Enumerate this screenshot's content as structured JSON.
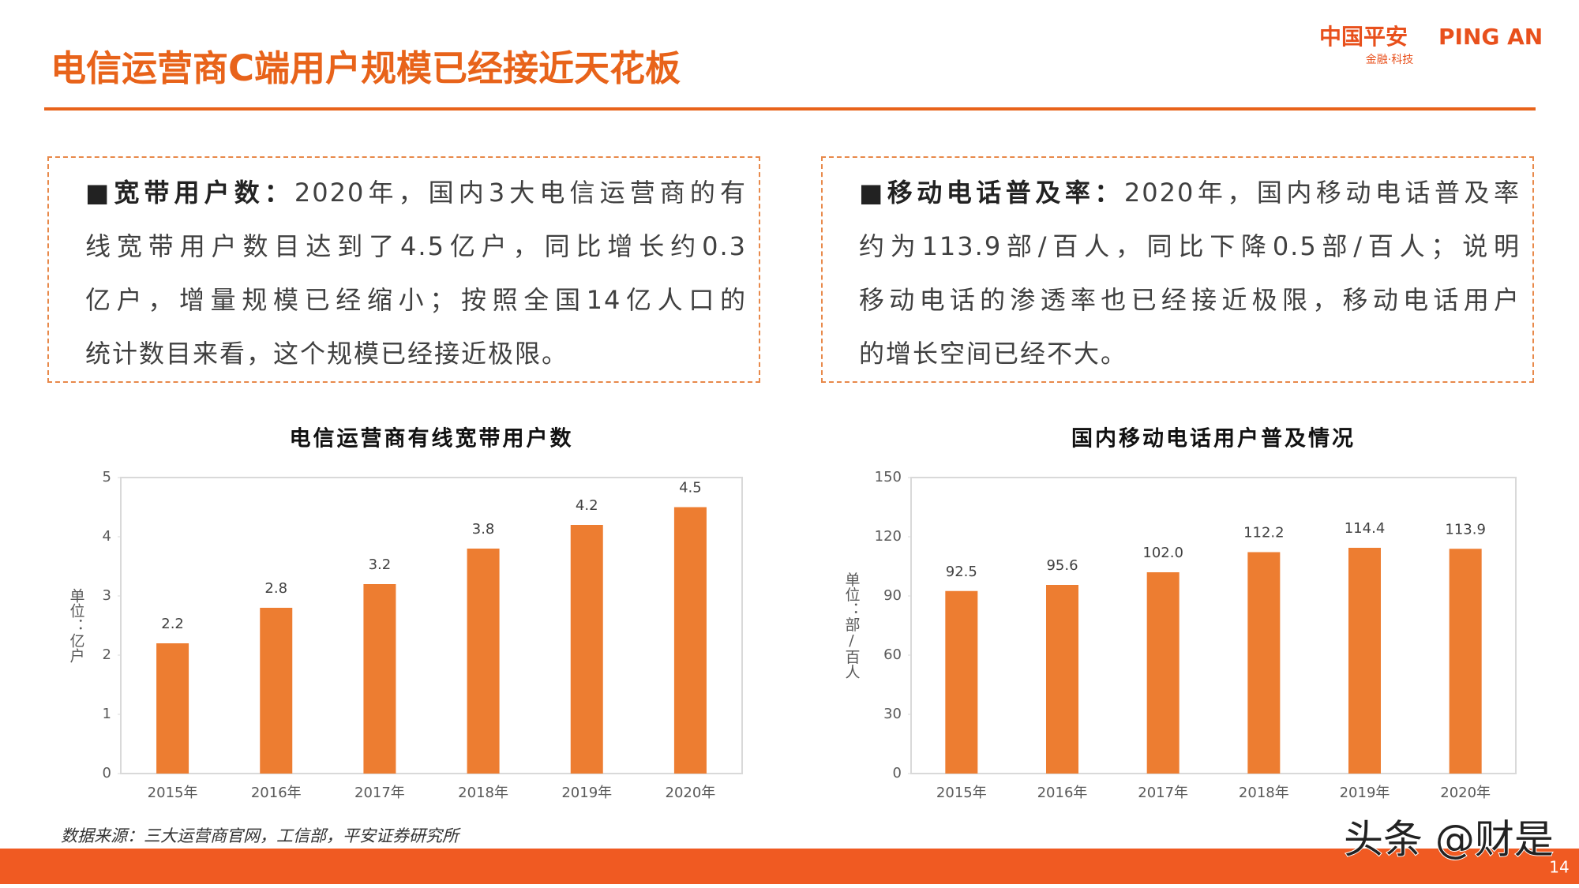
{
  "header": {
    "title": "电信运营商C端用户规模已经接近天花板",
    "logo": {
      "brand_cn": "中国平安",
      "brand_en": "PING AN",
      "tagline": "金融·科技"
    }
  },
  "boxes": [
    {
      "heading": "■宽带用户数：",
      "lines": [
        "2020年，国内3大电信运营商的有",
        "线宽带用户数目达到了4.5亿户，同比增长约0.3",
        "亿户，增量规模已经缩小；按照全国14亿人口的",
        "统计数目来看，这个规模已经接近极限。"
      ]
    },
    {
      "heading": "■移动电话普及率：",
      "lines": [
        "2020年，国内移动电话普及率",
        "约为113.9部/百人，同比下降0.5部/百人；说明",
        "移动电话的渗透率也已经接近极限，移动电话用户",
        "的增长空间已经不大。"
      ]
    }
  ],
  "chart_data": [
    {
      "type": "bar",
      "title": "电信运营商有线宽带用户数",
      "y_label": "单位：亿户",
      "categories": [
        "2015年",
        "2016年",
        "2017年",
        "2018年",
        "2019年",
        "2020年"
      ],
      "values": [
        2.2,
        2.8,
        3.2,
        3.8,
        4.2,
        4.5
      ],
      "color": "#ed7d31",
      "ylim": [
        0,
        5
      ],
      "yticks": [
        0,
        1,
        2,
        3,
        4,
        5
      ]
    },
    {
      "type": "bar",
      "title": "国内移动电话用户普及情况",
      "y_label": "单位：部/百人",
      "categories": [
        "2015年",
        "2016年",
        "2017年",
        "2018年",
        "2019年",
        "2020年"
      ],
      "values": [
        92.5,
        95.6,
        102,
        112.2,
        114.4,
        113.9
      ],
      "value_labels": [
        "92.5",
        "95.6",
        "102.0",
        "112.2",
        "114.4",
        "113.9"
      ],
      "color": "#ed7d31",
      "ylim": [
        0,
        150
      ],
      "yticks": [
        0,
        30,
        60,
        90,
        120,
        150
      ]
    }
  ],
  "footer": {
    "source": "数据来源：三大运营商官网，工信部，平安证券研究所",
    "page": "14",
    "watermark": "头条 @财是"
  }
}
